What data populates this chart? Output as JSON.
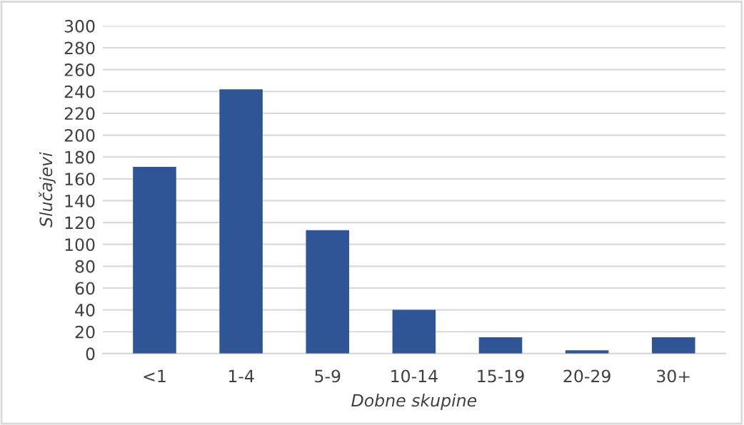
{
  "chart_data": {
    "type": "bar",
    "xlabel": "Dobne skupine",
    "ylabel": "Slučajevi",
    "categories": [
      "<1",
      "1-4",
      "5-9",
      "10-14",
      "15-19",
      "20-29",
      "30+"
    ],
    "values": [
      171,
      242,
      113,
      40,
      15,
      3,
      15
    ],
    "color": "#2f5597",
    "ylim": [
      0,
      300
    ],
    "yticks": [
      0,
      20,
      40,
      60,
      80,
      100,
      120,
      140,
      160,
      180,
      200,
      220,
      240,
      260,
      280,
      300
    ],
    "grid": "y",
    "legend": false
  }
}
